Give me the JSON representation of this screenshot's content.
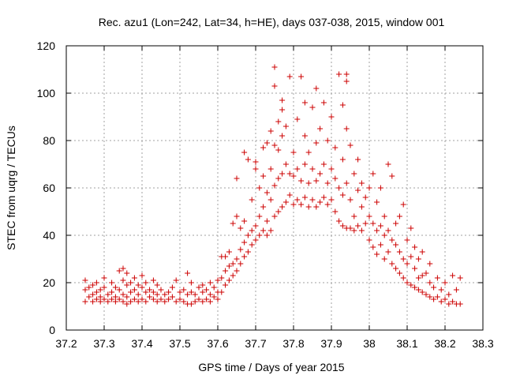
{
  "chart_data": {
    "type": "scatter",
    "title": "Rec. azu1 (Lon=242, Lat=34, h=HE), days 037-038, 2015, window 001",
    "xlabel": "GPS time / Days of year 2015",
    "ylabel": "STEC from uqrg / TECUs",
    "xlim": [
      37.2,
      38.3
    ],
    "ylim": [
      0,
      120
    ],
    "xticks": [
      "37.2",
      "37.3",
      "37.4",
      "37.5",
      "37.6",
      "37.7",
      "37.8",
      "37.9",
      "38",
      "38.1",
      "38.2",
      "38.3"
    ],
    "yticks": [
      "0",
      "20",
      "40",
      "60",
      "80",
      "100",
      "120"
    ],
    "grid": true,
    "marker": "+",
    "color": "#cc0000",
    "series": [
      {
        "points": [
          [
            37.25,
            12
          ],
          [
            37.25,
            17
          ],
          [
            37.25,
            21
          ],
          [
            37.26,
            14
          ],
          [
            37.26,
            18
          ],
          [
            37.27,
            12
          ],
          [
            37.27,
            15
          ],
          [
            37.27,
            19
          ],
          [
            37.28,
            13
          ],
          [
            37.28,
            16
          ],
          [
            37.28,
            20
          ],
          [
            37.29,
            12
          ],
          [
            37.29,
            14
          ],
          [
            37.29,
            17
          ],
          [
            37.3,
            13
          ],
          [
            37.3,
            18
          ],
          [
            37.3,
            22
          ],
          [
            37.31,
            12
          ],
          [
            37.31,
            15
          ],
          [
            37.32,
            13
          ],
          [
            37.32,
            16
          ],
          [
            37.32,
            20
          ],
          [
            37.33,
            12
          ],
          [
            37.33,
            14
          ],
          [
            37.33,
            18
          ],
          [
            37.34,
            13
          ],
          [
            37.34,
            17
          ],
          [
            37.34,
            25
          ],
          [
            37.35,
            12
          ],
          [
            37.35,
            15
          ],
          [
            37.35,
            21
          ],
          [
            37.35,
            26
          ],
          [
            37.36,
            11
          ],
          [
            37.36,
            14
          ],
          [
            37.36,
            19
          ],
          [
            37.36,
            24
          ],
          [
            37.37,
            12
          ],
          [
            37.37,
            16
          ],
          [
            37.37,
            20
          ],
          [
            37.38,
            13
          ],
          [
            37.38,
            17
          ],
          [
            37.38,
            22
          ],
          [
            37.39,
            12
          ],
          [
            37.39,
            15
          ],
          [
            37.39,
            19
          ],
          [
            37.4,
            13
          ],
          [
            37.4,
            18
          ],
          [
            37.4,
            23
          ],
          [
            37.41,
            12
          ],
          [
            37.41,
            16
          ],
          [
            37.41,
            20
          ],
          [
            37.42,
            14
          ],
          [
            37.42,
            17
          ],
          [
            37.43,
            13
          ],
          [
            37.43,
            16
          ],
          [
            37.43,
            21
          ],
          [
            37.44,
            12
          ],
          [
            37.44,
            15
          ],
          [
            37.44,
            19
          ],
          [
            37.45,
            13
          ],
          [
            37.45,
            17
          ],
          [
            37.46,
            12
          ],
          [
            37.46,
            15
          ],
          [
            37.47,
            13
          ],
          [
            37.47,
            16
          ],
          [
            37.48,
            14
          ],
          [
            37.48,
            18
          ],
          [
            37.49,
            12
          ],
          [
            37.49,
            21
          ],
          [
            37.5,
            13
          ],
          [
            37.5,
            16
          ],
          [
            37.51,
            12
          ],
          [
            37.51,
            17
          ],
          [
            37.52,
            11
          ],
          [
            37.52,
            15
          ],
          [
            37.52,
            24
          ],
          [
            37.53,
            11
          ],
          [
            37.53,
            16
          ],
          [
            37.53,
            20
          ],
          [
            37.54,
            12
          ],
          [
            37.54,
            15
          ],
          [
            37.55,
            13
          ],
          [
            37.55,
            18
          ],
          [
            37.56,
            12
          ],
          [
            37.56,
            16
          ],
          [
            37.56,
            19
          ],
          [
            37.57,
            13
          ],
          [
            37.57,
            17
          ],
          [
            37.58,
            12
          ],
          [
            37.58,
            15
          ],
          [
            37.58,
            20
          ],
          [
            37.59,
            14
          ],
          [
            37.59,
            18
          ],
          [
            37.6,
            13
          ],
          [
            37.6,
            16
          ],
          [
            37.6,
            21
          ],
          [
            37.61,
            16
          ],
          [
            37.61,
            22
          ],
          [
            37.61,
            31
          ],
          [
            37.62,
            19
          ],
          [
            37.62,
            25
          ],
          [
            37.62,
            31
          ],
          [
            37.63,
            21
          ],
          [
            37.63,
            27
          ],
          [
            37.63,
            33
          ],
          [
            37.64,
            23
          ],
          [
            37.64,
            28
          ],
          [
            37.64,
            45
          ],
          [
            37.65,
            25
          ],
          [
            37.65,
            30
          ],
          [
            37.65,
            48
          ],
          [
            37.65,
            64
          ],
          [
            37.66,
            28
          ],
          [
            37.66,
            34
          ],
          [
            37.66,
            43
          ],
          [
            37.67,
            31
          ],
          [
            37.67,
            37
          ],
          [
            37.67,
            46
          ],
          [
            37.67,
            75
          ],
          [
            37.68,
            33
          ],
          [
            37.68,
            40
          ],
          [
            37.68,
            72
          ],
          [
            37.69,
            36
          ],
          [
            37.69,
            42
          ],
          [
            37.69,
            55
          ],
          [
            37.7,
            38
          ],
          [
            37.7,
            44
          ],
          [
            37.7,
            68
          ],
          [
            37.7,
            71
          ],
          [
            37.71,
            40
          ],
          [
            37.71,
            48
          ],
          [
            37.71,
            60
          ],
          [
            37.72,
            42
          ],
          [
            37.72,
            52
          ],
          [
            37.72,
            65
          ],
          [
            37.72,
            77
          ],
          [
            37.73,
            40
          ],
          [
            37.73,
            46
          ],
          [
            37.73,
            58
          ],
          [
            37.73,
            79
          ],
          [
            37.74,
            42
          ],
          [
            37.74,
            55
          ],
          [
            37.74,
            68
          ],
          [
            37.74,
            84
          ],
          [
            37.75,
            48
          ],
          [
            37.75,
            61
          ],
          [
            37.75,
            78
          ],
          [
            37.75,
            103
          ],
          [
            37.75,
            111
          ],
          [
            37.76,
            50
          ],
          [
            37.76,
            64
          ],
          [
            37.76,
            76
          ],
          [
            37.76,
            88
          ],
          [
            37.77,
            52
          ],
          [
            37.77,
            66
          ],
          [
            37.77,
            82
          ],
          [
            37.77,
            93
          ],
          [
            37.77,
            97
          ],
          [
            37.78,
            54
          ],
          [
            37.78,
            70
          ],
          [
            37.78,
            86
          ],
          [
            37.79,
            57
          ],
          [
            37.79,
            66
          ],
          [
            37.79,
            107
          ],
          [
            37.8,
            53
          ],
          [
            37.8,
            65
          ],
          [
            37.8,
            75
          ],
          [
            37.81,
            55
          ],
          [
            37.81,
            68
          ],
          [
            37.81,
            89
          ],
          [
            37.82,
            53
          ],
          [
            37.82,
            63
          ],
          [
            37.82,
            107
          ],
          [
            37.83,
            56
          ],
          [
            37.83,
            70
          ],
          [
            37.83,
            82
          ],
          [
            37.83,
            96
          ],
          [
            37.84,
            52
          ],
          [
            37.84,
            62
          ],
          [
            37.84,
            75
          ],
          [
            37.85,
            55
          ],
          [
            37.85,
            68
          ],
          [
            37.85,
            94
          ],
          [
            37.86,
            52
          ],
          [
            37.86,
            63
          ],
          [
            37.86,
            79
          ],
          [
            37.86,
            102
          ],
          [
            37.87,
            54
          ],
          [
            37.87,
            66
          ],
          [
            37.87,
            85
          ],
          [
            37.88,
            56
          ],
          [
            37.88,
            70
          ],
          [
            37.88,
            96
          ],
          [
            37.89,
            53
          ],
          [
            37.89,
            62
          ],
          [
            37.89,
            80
          ],
          [
            37.9,
            55
          ],
          [
            37.9,
            68
          ],
          [
            37.9,
            90
          ],
          [
            37.91,
            50
          ],
          [
            37.91,
            64
          ],
          [
            37.91,
            77
          ],
          [
            37.92,
            46
          ],
          [
            37.92,
            60
          ],
          [
            37.92,
            108
          ],
          [
            37.93,
            44
          ],
          [
            37.93,
            57
          ],
          [
            37.93,
            72
          ],
          [
            37.93,
            95
          ],
          [
            37.94,
            43
          ],
          [
            37.94,
            62
          ],
          [
            37.94,
            85
          ],
          [
            37.94,
            105
          ],
          [
            37.94,
            108
          ],
          [
            37.95,
            43
          ],
          [
            37.95,
            55
          ],
          [
            37.95,
            78
          ],
          [
            37.96,
            42
          ],
          [
            37.96,
            48
          ],
          [
            37.96,
            66
          ],
          [
            37.97,
            44
          ],
          [
            37.97,
            59
          ],
          [
            37.97,
            72
          ],
          [
            37.98,
            42
          ],
          [
            37.98,
            52
          ],
          [
            37.98,
            62
          ],
          [
            37.99,
            45
          ],
          [
            37.99,
            56
          ],
          [
            38.0,
            38
          ],
          [
            38.0,
            48
          ],
          [
            38.0,
            60
          ],
          [
            38.01,
            35
          ],
          [
            38.01,
            45
          ],
          [
            38.01,
            66
          ],
          [
            38.02,
            32
          ],
          [
            38.02,
            42
          ],
          [
            38.02,
            54
          ],
          [
            38.03,
            36
          ],
          [
            38.03,
            44
          ],
          [
            38.03,
            60
          ],
          [
            38.04,
            30
          ],
          [
            38.04,
            40
          ],
          [
            38.04,
            48
          ],
          [
            38.05,
            33
          ],
          [
            38.05,
            42
          ],
          [
            38.05,
            70
          ],
          [
            38.06,
            28
          ],
          [
            38.06,
            38
          ],
          [
            38.06,
            65
          ],
          [
            38.07,
            26
          ],
          [
            38.07,
            36
          ],
          [
            38.07,
            45
          ],
          [
            38.08,
            24
          ],
          [
            38.08,
            33
          ],
          [
            38.08,
            48
          ],
          [
            38.09,
            22
          ],
          [
            38.09,
            30
          ],
          [
            38.09,
            53
          ],
          [
            38.1,
            20
          ],
          [
            38.1,
            28
          ],
          [
            38.1,
            38
          ],
          [
            38.11,
            19
          ],
          [
            38.11,
            31
          ],
          [
            38.11,
            43
          ],
          [
            38.12,
            18
          ],
          [
            38.12,
            26
          ],
          [
            38.12,
            35
          ],
          [
            38.13,
            17
          ],
          [
            38.13,
            22
          ],
          [
            38.13,
            30
          ],
          [
            38.14,
            16
          ],
          [
            38.14,
            23
          ],
          [
            38.14,
            33
          ],
          [
            38.15,
            15
          ],
          [
            38.15,
            24
          ],
          [
            38.16,
            14
          ],
          [
            38.16,
            20
          ],
          [
            38.16,
            28
          ],
          [
            38.17,
            13
          ],
          [
            38.17,
            18
          ],
          [
            38.18,
            14
          ],
          [
            38.18,
            22
          ],
          [
            38.19,
            12
          ],
          [
            38.19,
            17
          ],
          [
            38.2,
            13
          ],
          [
            38.2,
            20
          ],
          [
            38.21,
            11
          ],
          [
            38.21,
            15
          ],
          [
            38.22,
            12
          ],
          [
            38.22,
            23
          ],
          [
            38.23,
            11
          ],
          [
            38.23,
            17
          ],
          [
            38.24,
            11
          ],
          [
            38.24,
            22
          ]
        ]
      }
    ]
  }
}
